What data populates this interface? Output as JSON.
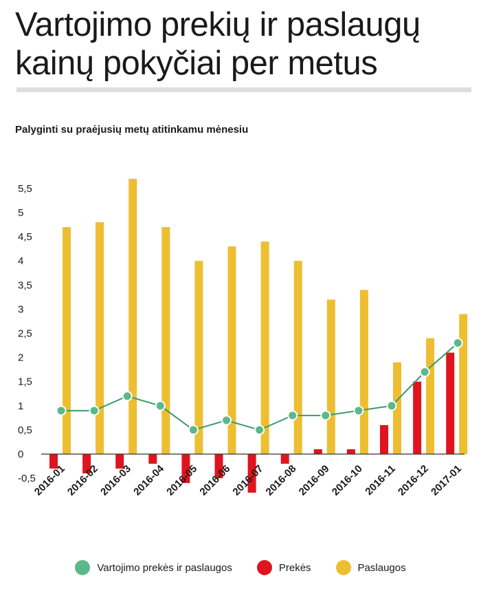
{
  "title": "Vartojimo prekių ir paslaugų kainų pokyčiai per metus",
  "subtitle": "Palyginti su praėjusių metų atitinkamu mėnesiu",
  "colors": {
    "total": "#5cb88a",
    "total_line": "#3a9a68",
    "goods": "#e0141e",
    "services": "#eebe32",
    "axis": "#333333",
    "rule": "#dedede"
  },
  "legend": [
    {
      "key": "total",
      "label": "Vartojimo prekės ir paslaugos"
    },
    {
      "key": "goods",
      "label": "Prekės"
    },
    {
      "key": "services",
      "label": "Paslaugos"
    }
  ],
  "chart_data": {
    "type": "bar",
    "categories": [
      "2016-01",
      "2016-02",
      "2016-03",
      "2016-04",
      "2016-05",
      "2016-06",
      "2016-07",
      "2016-08",
      "2016-09",
      "2016-10",
      "2016-11",
      "2016-12",
      "2017-01"
    ],
    "yticks": [
      "5,5",
      "5",
      "4,5",
      "4",
      "3,5",
      "3",
      "2,5",
      "2",
      "1,5",
      "1",
      "0,5",
      "0",
      "-0,5"
    ],
    "ylim": [
      -0.8,
      5.8
    ],
    "series": [
      {
        "name": "Vartojimo prekės ir paslaugos",
        "type": "line",
        "values": [
          0.9,
          0.9,
          1.2,
          1.0,
          0.5,
          0.7,
          0.5,
          0.8,
          0.8,
          0.9,
          1.0,
          1.7,
          2.3
        ]
      },
      {
        "name": "Prekės",
        "type": "bar",
        "values": [
          -0.3,
          -0.4,
          -0.3,
          -0.2,
          -0.6,
          -0.5,
          -0.8,
          -0.2,
          0.1,
          0.1,
          0.6,
          1.5,
          2.1
        ]
      },
      {
        "name": "Paslaugos",
        "type": "bar",
        "values": [
          4.7,
          4.8,
          5.7,
          4.7,
          4.0,
          4.3,
          4.4,
          4.0,
          3.2,
          3.4,
          1.9,
          2.4,
          2.9
        ]
      }
    ]
  }
}
